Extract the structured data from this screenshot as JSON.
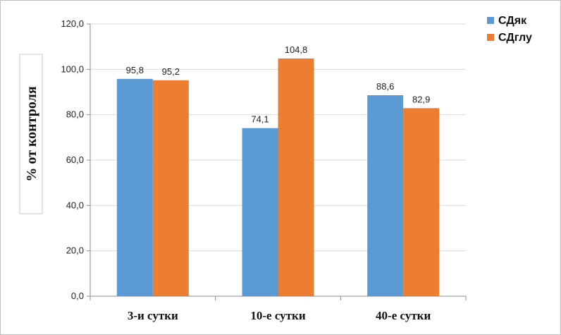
{
  "chart_data": {
    "type": "bar",
    "categories": [
      "3-и сутки",
      "10-е сутки",
      "40-е сутки"
    ],
    "series": [
      {
        "name": "СДяк",
        "values": [
          95.8,
          74.1,
          88.6
        ],
        "labels": [
          "95,8",
          "74,1",
          "88,6"
        ],
        "color": "#5b9bd5"
      },
      {
        "name": "СДглу",
        "values": [
          95.2,
          104.8,
          82.9
        ],
        "labels": [
          "95,2",
          "104,8",
          "82,9"
        ],
        "color": "#ed7d31"
      }
    ],
    "ylabel": "% от контроля",
    "ylim": [
      0,
      120
    ],
    "yticks": [
      0,
      20,
      40,
      60,
      80,
      100,
      120
    ],
    "ytick_labels": [
      "0,0",
      "20,0",
      "40,0",
      "60,0",
      "80,0",
      "100,0",
      "120,0"
    ],
    "grid": true,
    "legend": "top-right"
  }
}
